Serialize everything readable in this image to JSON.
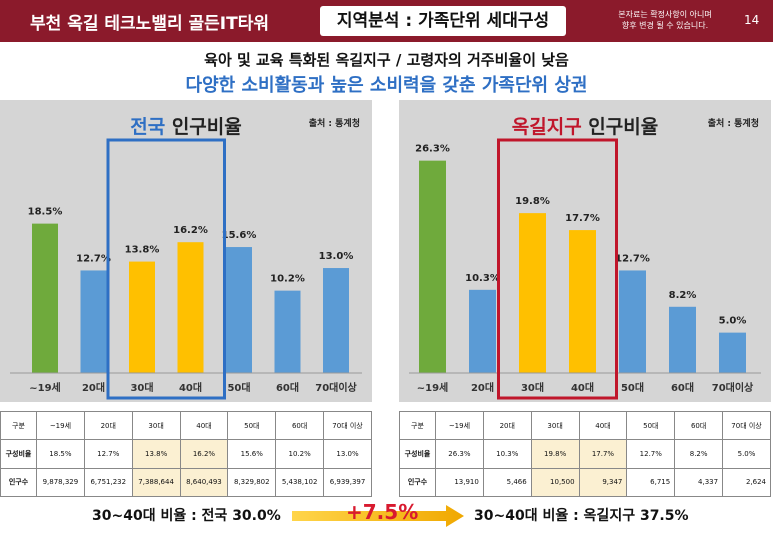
{
  "header": {
    "project_title": "부천 옥길 테크노밸리 골든IT타워",
    "section_title": "지역분석 : 가족단위 세대구성",
    "notice_line1": "본자료는 확정사항이 아니며",
    "notice_line2": "향후 변경 될 수 있습니다.",
    "page_number": "14"
  },
  "subtitle1": "육아 및 교육 특화된 옥길지구 / 고령자의 거주비율이 낮음",
  "subtitle2": "다양한 소비활동과 높은 소비력을 갖춘 가족단위 상권",
  "colors": {
    "green": "#6faa3c",
    "blue": "#5b9bd5",
    "yellow": "#ffc000",
    "frame_blue": "#2e6fc4",
    "frame_red": "#c0162b"
  },
  "chart_data": [
    {
      "type": "bar",
      "title_highlight": "전국",
      "title_rest": " 인구비율",
      "source": "출처 : 통계청",
      "categories": [
        "~19세",
        "20대",
        "30대",
        "40대",
        "50대",
        "60대",
        "70대이상"
      ],
      "values": [
        18.5,
        12.7,
        13.8,
        16.2,
        15.6,
        10.2,
        13.0
      ],
      "labels": [
        "18.5%",
        "12.7%",
        "13.8%",
        "16.2%",
        "15.6%",
        "10.2%",
        "13.0%"
      ],
      "colors": [
        "green",
        "blue",
        "yellow",
        "yellow",
        "blue",
        "blue",
        "blue"
      ],
      "ylim": [
        0,
        27
      ]
    },
    {
      "type": "bar",
      "title_highlight": "옥길지구",
      "title_rest": " 인구비율",
      "source": "출처 : 통계청",
      "categories": [
        "~19세",
        "20대",
        "30대",
        "40대",
        "50대",
        "60대",
        "70대이상"
      ],
      "values": [
        26.3,
        10.3,
        19.8,
        17.7,
        12.7,
        8.2,
        5.0
      ],
      "labels": [
        "26.3%",
        "10.3%",
        "19.8%",
        "17.7%",
        "12.7%",
        "8.2%",
        "5.0%"
      ],
      "colors": [
        "green",
        "blue",
        "yellow",
        "yellow",
        "blue",
        "blue",
        "blue"
      ],
      "ylim": [
        0,
        27
      ]
    }
  ],
  "tables": [
    {
      "headers": [
        "구분",
        "~19세",
        "20대",
        "30대",
        "40대",
        "50대",
        "60대",
        "70대 이상"
      ],
      "row1_label": "구성비율",
      "row1": [
        "18.5%",
        "12.7%",
        "13.8%",
        "16.2%",
        "15.6%",
        "10.2%",
        "13.0%"
      ],
      "row2_label": "인구수",
      "row2": [
        "9,878,329",
        "6,751,232",
        "7,388,644",
        "8,640,493",
        "8,329,802",
        "5,438,102",
        "6,939,397"
      ]
    },
    {
      "headers": [
        "구분",
        "~19세",
        "20대",
        "30대",
        "40대",
        "50대",
        "60대",
        "70대 이상"
      ],
      "row1_label": "구성비율",
      "row1": [
        "26.3%",
        "10.3%",
        "19.8%",
        "17.7%",
        "12.7%",
        "8.2%",
        "5.0%"
      ],
      "row2_label": "인구수",
      "row2": [
        "13,910",
        "5,466",
        "10,500",
        "9,347",
        "6,715",
        "4,337",
        "2,624"
      ]
    }
  ],
  "bottom": {
    "left_text": "30~40대 비율 : 전국 30.0%",
    "diff": "+7.5%",
    "right_text": "30~40대 비율 : 옥길지구 37.5%"
  }
}
